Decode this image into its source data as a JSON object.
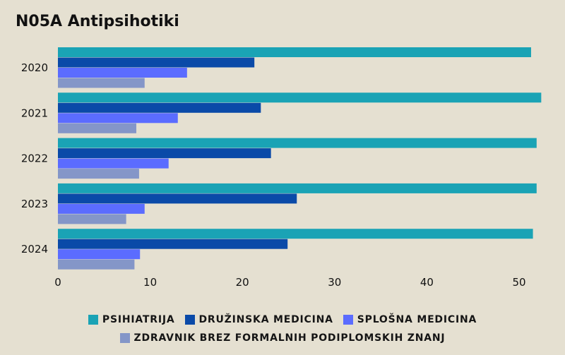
{
  "title": "N05A Antipsihotiki",
  "chart_data": {
    "type": "bar",
    "orientation": "horizontal",
    "title": "N05A Antipsihotiki",
    "categories": [
      "2020",
      "2021",
      "2022",
      "2023",
      "2024"
    ],
    "series": [
      {
        "name": "PSIHIATRIJA",
        "color": "#1aa3b5",
        "values": [
          51.3,
          52.4,
          51.9,
          51.9,
          51.5
        ]
      },
      {
        "name": "DRUŽINSKA MEDICINA",
        "color": "#0a4aa8",
        "values": [
          21.3,
          22.0,
          23.1,
          25.9,
          24.9
        ]
      },
      {
        "name": "SPLOŠNA MEDICINA",
        "color": "#5b6cff",
        "values": [
          14.0,
          13.0,
          12.0,
          9.4,
          8.9
        ]
      },
      {
        "name": "ZDRAVNIK BREZ FORMALNIH PODIPLOMSKIH ZNANJ",
        "color": "#8496c8",
        "values": [
          9.4,
          8.5,
          8.8,
          7.4,
          8.3
        ]
      }
    ],
    "x_ticks": [
      0,
      10,
      20,
      30,
      40,
      50
    ],
    "xlim": [
      0,
      52.5
    ],
    "grid": false,
    "legend_position": "bottom"
  }
}
